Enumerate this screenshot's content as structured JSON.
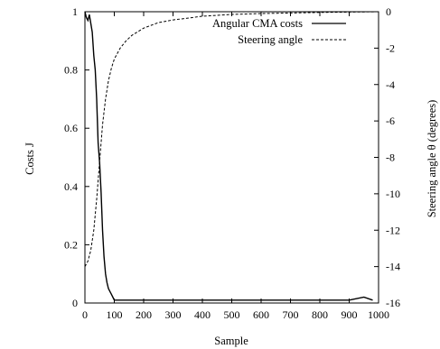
{
  "chart_data": {
    "type": "line",
    "xlabel": "Sample",
    "ylabel_left": "Costs J",
    "ylabel_right": "Steering angle θ (degrees)",
    "xlim": [
      0,
      1000
    ],
    "ylim_left": [
      0,
      1
    ],
    "ylim_right": [
      -16,
      0
    ],
    "xticks": [
      "0",
      "100",
      "200",
      "300",
      "400",
      "500",
      "600",
      "700",
      "800",
      "900",
      "1000"
    ],
    "yticks_left": [
      "0",
      "0.2",
      "0.4",
      "0.6",
      "0.8",
      "1"
    ],
    "yticks_right": [
      "0",
      "-2",
      "-4",
      "-6",
      "-8",
      "-10",
      "-12",
      "-14",
      "-16"
    ],
    "legend_position": "top-right",
    "grid": false,
    "series": [
      {
        "name": "Angular CMA costs",
        "axis": "left",
        "style": "solid",
        "x": [
          0,
          5,
          10,
          15,
          20,
          25,
          30,
          35,
          40,
          45,
          50,
          55,
          60,
          65,
          70,
          75,
          80,
          85,
          90,
          95,
          100,
          110,
          120,
          140,
          160,
          200,
          300,
          400,
          500,
          600,
          700,
          800,
          900,
          950,
          980
        ],
        "y": [
          1.0,
          0.98,
          0.97,
          0.99,
          0.96,
          0.93,
          0.85,
          0.8,
          0.7,
          0.55,
          0.48,
          0.38,
          0.25,
          0.16,
          0.1,
          0.07,
          0.05,
          0.04,
          0.03,
          0.02,
          0.01,
          0.01,
          0.01,
          0.01,
          0.01,
          0.01,
          0.01,
          0.01,
          0.01,
          0.01,
          0.01,
          0.01,
          0.01,
          0.02,
          0.01
        ]
      },
      {
        "name": "Steering angle",
        "axis": "right",
        "style": "dashed",
        "x": [
          0,
          10,
          20,
          30,
          40,
          50,
          60,
          70,
          80,
          90,
          100,
          120,
          140,
          160,
          180,
          200,
          250,
          300,
          350,
          400,
          500,
          600,
          700,
          800,
          900,
          1000
        ],
        "y": [
          -14.0,
          -13.7,
          -13.1,
          -12.0,
          -10.3,
          -8.2,
          -6.2,
          -4.8,
          -3.8,
          -3.1,
          -2.6,
          -2.0,
          -1.6,
          -1.3,
          -1.1,
          -0.9,
          -0.6,
          -0.45,
          -0.35,
          -0.25,
          -0.15,
          -0.1,
          -0.07,
          -0.04,
          -0.02,
          0.0
        ]
      }
    ]
  }
}
